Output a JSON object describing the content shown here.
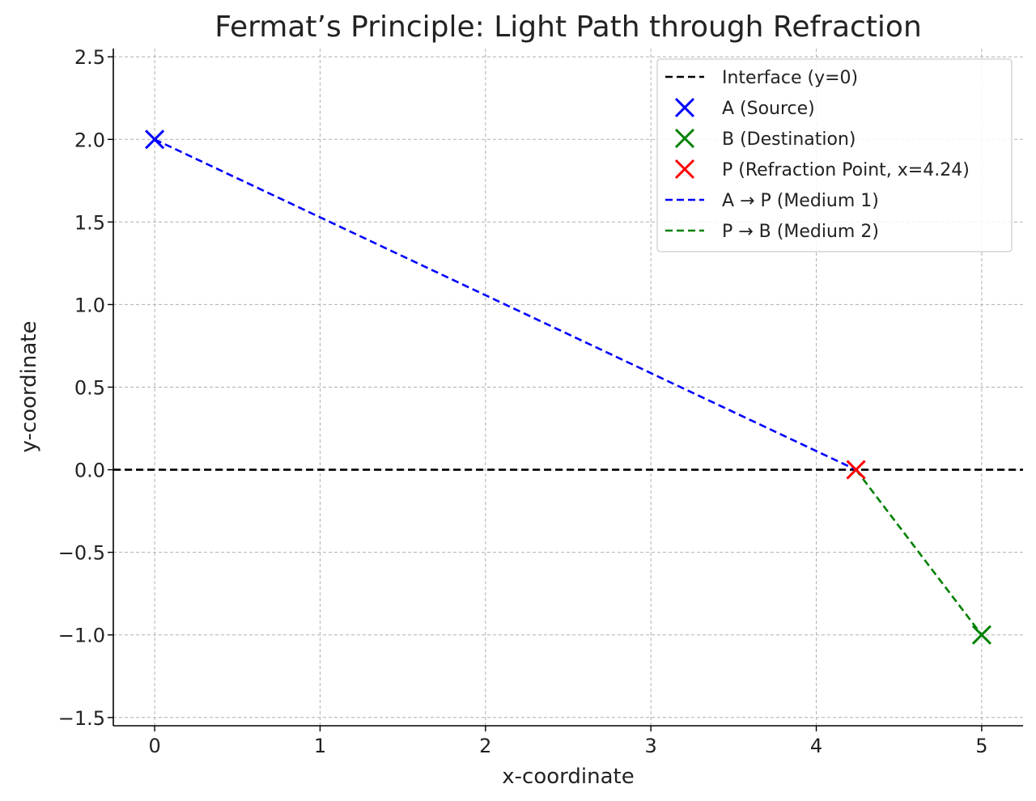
{
  "chart_data": {
    "type": "line",
    "title": "Fermat’s Principle: Light Path through Refraction",
    "xlabel": "x-coordinate",
    "ylabel": "y-coordinate",
    "xlim": [
      -0.25,
      5.25
    ],
    "ylim": [
      -1.55,
      2.55
    ],
    "x_ticks": [
      0,
      1,
      2,
      3,
      4,
      5
    ],
    "x_tick_labels": [
      "0",
      "1",
      "2",
      "3",
      "4",
      "5"
    ],
    "y_ticks": [
      2.5,
      2.0,
      1.5,
      1.0,
      0.5,
      0.0,
      -0.5,
      -1.0,
      -1.5
    ],
    "y_tick_labels": [
      "2.5",
      "2.0",
      "1.5",
      "1.0",
      "0.5",
      "0.0",
      "−0.5",
      "−1.0",
      "−1.5"
    ],
    "grid": true,
    "legend_position": "top-right",
    "interface": {
      "name": "Interface (y=0)",
      "y": 0,
      "color": "#000000",
      "style": "dashed"
    },
    "points": [
      {
        "name": "A (Source)",
        "x": 0,
        "y": 2,
        "color": "#0000ff",
        "marker": "x"
      },
      {
        "name": "B (Destination)",
        "x": 5,
        "y": -1,
        "color": "#008000",
        "marker": "x"
      },
      {
        "name": "P (Refraction Point, x=4.24)",
        "x": 4.24,
        "y": 0,
        "color": "#ff0000",
        "marker": "x"
      }
    ],
    "series": [
      {
        "name": "A → P (Medium 1)",
        "x": [
          0,
          4.24
        ],
        "y": [
          2,
          0
        ],
        "color": "#0000ff",
        "style": "dashed"
      },
      {
        "name": "P → B (Medium 2)",
        "x": [
          4.24,
          5
        ],
        "y": [
          0,
          -1
        ],
        "color": "#008000",
        "style": "dashed"
      }
    ],
    "legend": [
      {
        "label": "Interface (y=0)",
        "kind": "line",
        "color": "#000000"
      },
      {
        "label": "A (Source)",
        "kind": "marker",
        "color": "#0000ff"
      },
      {
        "label": "B (Destination)",
        "kind": "marker",
        "color": "#008000"
      },
      {
        "label": "P (Refraction Point, x=4.24)",
        "kind": "marker",
        "color": "#ff0000"
      },
      {
        "label": "A → P (Medium 1)",
        "kind": "line",
        "color": "#0000ff"
      },
      {
        "label": "P → B (Medium 2)",
        "kind": "line",
        "color": "#008000"
      }
    ]
  }
}
